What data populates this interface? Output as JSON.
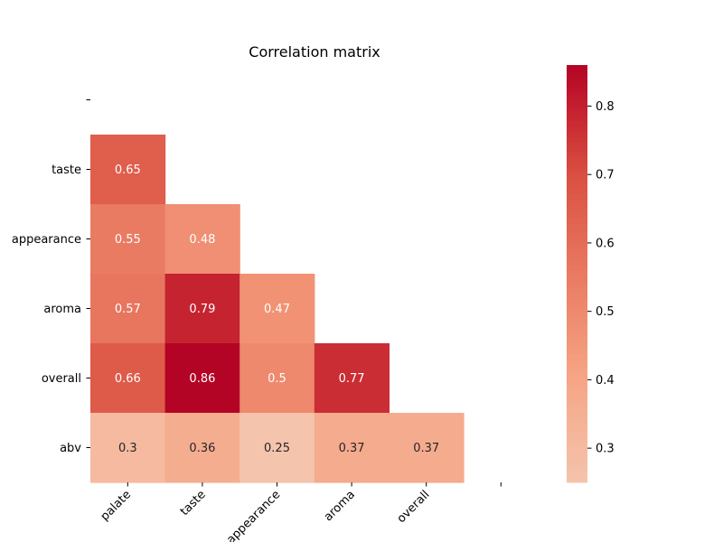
{
  "chart_data": {
    "type": "heatmap",
    "title": "Correlation matrix",
    "xlabel": "",
    "ylabel": "",
    "x_labels": [
      "palate",
      "taste",
      "appearance",
      "aroma",
      "overall",
      ""
    ],
    "y_labels": [
      "",
      "taste",
      "appearance",
      "aroma",
      "overall",
      "abv"
    ],
    "values": [
      [
        null,
        null,
        null,
        null,
        null,
        null
      ],
      [
        0.65,
        null,
        null,
        null,
        null,
        null
      ],
      [
        0.55,
        0.48,
        null,
        null,
        null,
        null
      ],
      [
        0.57,
        0.79,
        0.47,
        null,
        null,
        null
      ],
      [
        0.66,
        0.86,
        0.5,
        0.77,
        null,
        null
      ],
      [
        0.3,
        0.36,
        0.25,
        0.37,
        0.37,
        null
      ]
    ],
    "colorbar": {
      "min": 0.25,
      "max": 0.86,
      "ticks": [
        0.3,
        0.4,
        0.5,
        0.6,
        0.7,
        0.8
      ],
      "colormap": "coolwarm"
    },
    "mask": "upper-triangle",
    "grid": false
  }
}
